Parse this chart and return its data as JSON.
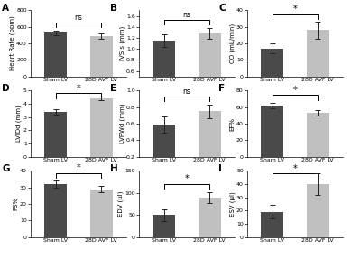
{
  "panels": [
    {
      "label": "A",
      "ylabel": "Heart Rate (bpm)",
      "ylim": [
        0,
        800
      ],
      "yticks": [
        0,
        200,
        400,
        600,
        800
      ],
      "sham_val": 530,
      "sham_err": 28,
      "avf_val": 490,
      "avf_err": 32,
      "sig": "ns"
    },
    {
      "label": "B",
      "ylabel": "IVS s (mm)",
      "ylim": [
        0.5,
        1.7
      ],
      "yticks": [
        0.6,
        0.8,
        1.0,
        1.2,
        1.4,
        1.6
      ],
      "sham_val": 1.15,
      "sham_err": 0.12,
      "avf_val": 1.28,
      "avf_err": 0.1,
      "sig": "ns"
    },
    {
      "label": "C",
      "ylabel": "CO (mL/min)",
      "ylim": [
        0,
        40
      ],
      "yticks": [
        0,
        10,
        20,
        30,
        40
      ],
      "sham_val": 17,
      "sham_err": 3,
      "avf_val": 28,
      "avf_err": 5,
      "sig": "*"
    },
    {
      "label": "D",
      "ylabel": "LVIDd (mm)",
      "ylim": [
        0,
        5
      ],
      "yticks": [
        0,
        1,
        2,
        3,
        4,
        5
      ],
      "sham_val": 3.4,
      "sham_err": 0.22,
      "avf_val": 4.4,
      "avf_err": 0.15,
      "sig": "*"
    },
    {
      "label": "E",
      "ylabel": "LVPWd (mm)",
      "ylim": [
        0.2,
        1.0
      ],
      "yticks": [
        0.2,
        0.4,
        0.6,
        0.8,
        1.0
      ],
      "sham_val": 0.59,
      "sham_err": 0.1,
      "avf_val": 0.75,
      "avf_err": 0.08,
      "sig": "ns"
    },
    {
      "label": "F",
      "ylabel": "EF%",
      "ylim": [
        0,
        80
      ],
      "yticks": [
        0,
        20,
        40,
        60,
        80
      ],
      "sham_val": 62,
      "sham_err": 3,
      "avf_val": 53,
      "avf_err": 3,
      "sig": "*"
    },
    {
      "label": "G",
      "ylabel": "FS%",
      "ylim": [
        0,
        40
      ],
      "yticks": [
        0,
        10,
        20,
        30,
        40
      ],
      "sham_val": 32,
      "sham_err": 2,
      "avf_val": 29,
      "avf_err": 2,
      "sig": "*"
    },
    {
      "label": "H",
      "ylabel": "EDV (μl)",
      "ylim": [
        0,
        150
      ],
      "yticks": [
        0,
        50,
        100,
        150
      ],
      "sham_val": 50,
      "sham_err": 13,
      "avf_val": 90,
      "avf_err": 12,
      "sig": "*"
    },
    {
      "label": "I",
      "ylabel": "ESV (μl)",
      "ylim": [
        0,
        50
      ],
      "yticks": [
        0,
        10,
        20,
        30,
        40,
        50
      ],
      "sham_val": 19,
      "sham_err": 5,
      "avf_val": 40,
      "avf_err": 8,
      "sig": "*"
    }
  ],
  "dark_color": "#4a4a4a",
  "light_color": "#c0c0c0",
  "bar_width": 0.5,
  "categories": [
    "Sham LV",
    "28D AVF LV"
  ],
  "bg_color": "#ffffff",
  "fontsize_label": 5.0,
  "fontsize_tick": 4.5,
  "fontsize_panel": 7.5
}
